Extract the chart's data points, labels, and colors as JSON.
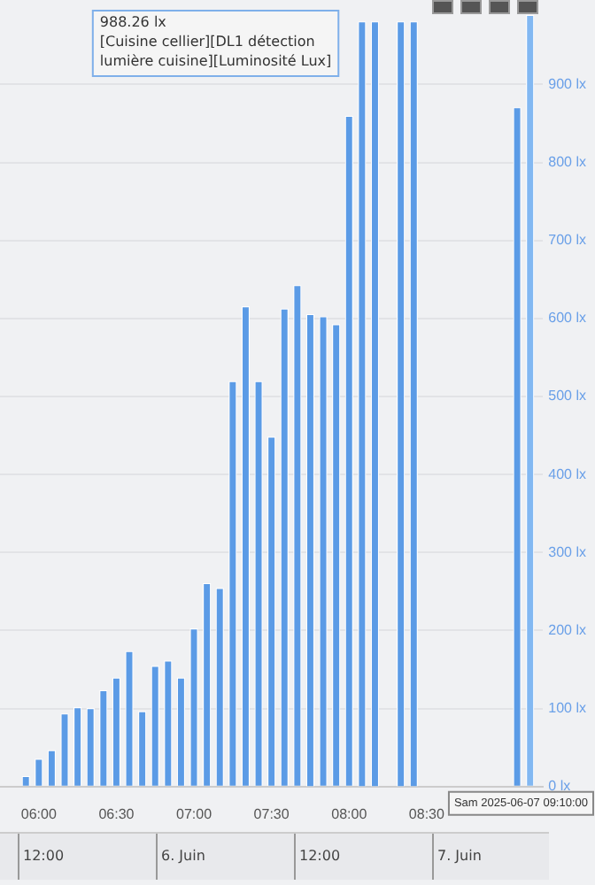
{
  "chart_data": {
    "type": "bar",
    "x": [
      5.9167,
      6,
      6.0833,
      6.1667,
      6.25,
      6.3333,
      6.4167,
      6.5,
      6.5833,
      6.6667,
      6.75,
      6.8333,
      6.9167,
      7,
      7.0833,
      7.1667,
      7.25,
      7.3333,
      7.4167,
      7.5,
      7.5833,
      7.6667,
      7.75,
      7.8333,
      7.9167,
      8,
      8.0833,
      8.1667,
      8.3333,
      8.4167,
      9.0833,
      9.1667
    ],
    "values": [
      13,
      35,
      46,
      93,
      101,
      100,
      123,
      139,
      173,
      96,
      154,
      161,
      139,
      202,
      260,
      254,
      519,
      615,
      519,
      448,
      612,
      642,
      605,
      602,
      592,
      859,
      980,
      980,
      980,
      980,
      870,
      988.26
    ],
    "colors": [
      "#5b9be6",
      "#5b9be6",
      "#5b9be6",
      "#5b9be6",
      "#5b9be6",
      "#5b9be6",
      "#5b9be6",
      "#5b9be6",
      "#5b9be6",
      "#5b9be6",
      "#5b9be6",
      "#5b9be6",
      "#5b9be6",
      "#5b9be6",
      "#5b9be6",
      "#5b9be6",
      "#5b9be6",
      "#5b9be6",
      "#5b9be6",
      "#5b9be6",
      "#5b9be6",
      "#5b9be6",
      "#5b9be6",
      "#5b9be6",
      "#5b9be6",
      "#5b9be6",
      "#5b9be6",
      "#5b9be6",
      "#5b9be6",
      "#5b9be6",
      "#5b9be6",
      "#82b8f2"
    ],
    "xlim": [
      5.75,
      9.25
    ],
    "xticks": [
      {
        "value": 6,
        "label": "06:00"
      },
      {
        "value": 6.5,
        "label": "06:30"
      },
      {
        "value": 7,
        "label": "07:00"
      },
      {
        "value": 7.5,
        "label": "07:30"
      },
      {
        "value": 8,
        "label": "08:00"
      },
      {
        "value": 8.5,
        "label": "08:30"
      }
    ],
    "ylim": [
      0,
      990
    ],
    "yticks": [
      {
        "value": 0,
        "label": "0 lx"
      },
      {
        "value": 100,
        "label": "100 lx"
      },
      {
        "value": 200,
        "label": "200 lx"
      },
      {
        "value": 300,
        "label": "300 lx"
      },
      {
        "value": 400,
        "label": "400 lx"
      },
      {
        "value": 500,
        "label": "500 lx"
      },
      {
        "value": 600,
        "label": "600 lx"
      },
      {
        "value": 700,
        "label": "700 lx"
      },
      {
        "value": 800,
        "label": "800 lx"
      },
      {
        "value": 900,
        "label": "900 lx"
      }
    ],
    "grid": "y",
    "annotations": [
      "988.26 lx\n[Cuisine cellier][DL1 détection lumière cuisine][Luminosité Lux]",
      "Sam 2025-06-07 09:10:00",
      "12:00",
      "6. Juin",
      "12:00",
      "7. Juin"
    ]
  }
}
